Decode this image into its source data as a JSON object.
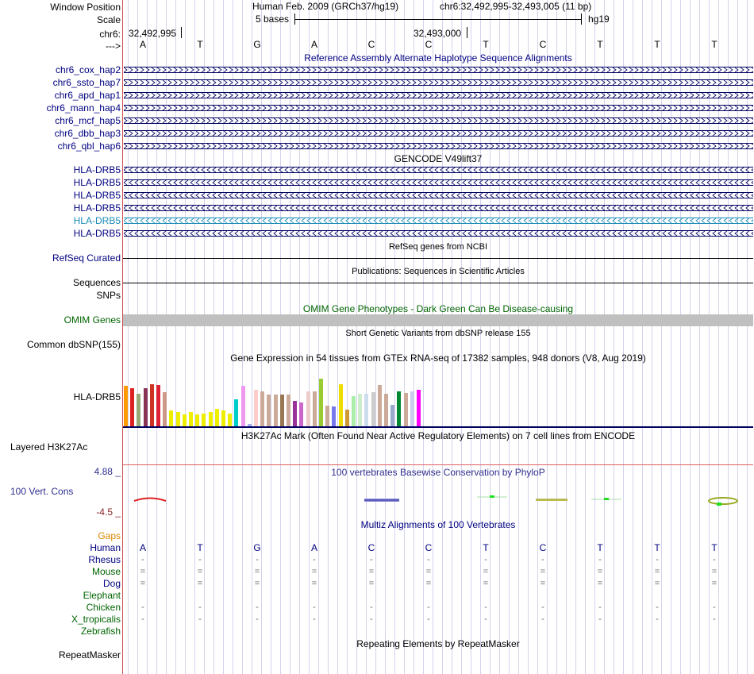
{
  "header": {
    "window_position_label": "Window Position",
    "scale_label": "Scale",
    "chr_label": "chr6:",
    "arrow_label": "--->",
    "assembly_title": "Human Feb. 2009 (GRCh37/hg19)",
    "position_range": "chr6:32,492,995-32,493,005 (11 bp)",
    "scale_text": "5 bases",
    "db_label": "hg19",
    "coord_left": "32,492,995",
    "coord_mid": "32,493,000"
  },
  "bases": [
    "A",
    "T",
    "G",
    "A",
    "C",
    "C",
    "T",
    "C",
    "T",
    "T",
    "T"
  ],
  "alt_haplotypes": {
    "title": "Reference Assembly Alternate Haplotype Sequence Alignments",
    "items": [
      "chr6_cox_hap2",
      "chr6_ssto_hap7",
      "chr6_apd_hap1",
      "chr6_mann_hap4",
      "chr6_mcf_hap5",
      "chr6_dbb_hap3",
      "chr6_qbl_hap6"
    ]
  },
  "gencode": {
    "title": "GENCODE V49lift37",
    "items": [
      "HLA-DRB5",
      "HLA-DRB5",
      "HLA-DRB5",
      "HLA-DRB5",
      "HLA-DRB5",
      "HLA-DRB5"
    ]
  },
  "refseq": {
    "title": "RefSeq genes from NCBI",
    "label": "RefSeq Curated"
  },
  "publications": {
    "title": "Publications: Sequences in Scientific Articles",
    "label": "Sequences"
  },
  "snps": {
    "label": "SNPs"
  },
  "omim": {
    "title": "OMIM Gene Phenotypes - Dark Green Can Be Disease-causing",
    "label": "OMIM Genes"
  },
  "dbsnp": {
    "title": "Short Genetic Variants from dbSNP release 155",
    "label": "Common dbSNP(155)"
  },
  "gtex": {
    "title": "Gene Expression in 54 tissues from GTEx RNA-seq of 17382 samples, 948 donors (V8, Aug 2019)",
    "label": "HLA-DRB5",
    "colors": [
      "#ff9900",
      "#dd2222",
      "#99aa77",
      "#883355",
      "#cc3322",
      "#dd2233",
      "#cc9988",
      "#eeee00",
      "#eeee00",
      "#eeee00",
      "#eeee00",
      "#eeee00",
      "#eeee00",
      "#eeee00",
      "#eeee00",
      "#eeee00",
      "#eeee00",
      "#00cccc",
      "#ee99ee",
      "#aaaaee",
      "#ffcccc",
      "#ccaa99",
      "#ccaa99",
      "#ccaa99",
      "#997755",
      "#ccaa99",
      "#993399",
      "#cc66cc",
      "#eecccc",
      "#ccaa99",
      "#99cc33",
      "#ccaa99",
      "#7777ee",
      "#eedd00",
      "#cc9933",
      "#aaeeaa",
      "#cceecc",
      "#ccddee",
      "#cccccc",
      "#ccaa99",
      "#ccaa99",
      "#99aacc",
      "#008833",
      "#ccaa99",
      "#ccccee",
      "#ff00ff"
    ],
    "values": [
      0.66,
      0.62,
      0.53,
      0.62,
      0.68,
      0.67,
      0.55,
      0.25,
      0.23,
      0.19,
      0.23,
      0.19,
      0.21,
      0.23,
      0.28,
      0.25,
      0.21,
      0.43,
      0.66,
      0.04,
      0.59,
      0.57,
      0.51,
      0.51,
      0.51,
      0.51,
      0.41,
      0.39,
      0.57,
      0.57,
      0.77,
      0.33,
      0.32,
      0.68,
      0.27,
      0.49,
      0.52,
      0.53,
      0.55,
      0.67,
      0.52,
      0.34,
      0.57,
      0.54,
      0.57,
      0.59
    ]
  },
  "h3k27ac": {
    "title": "H3K27Ac Mark (Often Found Near Active Regulatory Elements) on 7 cell lines from ENCODE",
    "label": "Layered H3K27Ac"
  },
  "phylop": {
    "title": "100 vertebrates Basewise Conservation by PhyloP",
    "label": "100 Vert. Cons",
    "ymax": "4.88 _",
    "ymin": "-4.5 _"
  },
  "multiz": {
    "title": "Multiz Alignments of 100 Vertebrates",
    "gaps_label": "Gaps",
    "species": [
      {
        "name": "Human",
        "glyph": "base"
      },
      {
        "name": "Rhesus",
        "glyph": "-"
      },
      {
        "name": "Mouse",
        "glyph": "="
      },
      {
        "name": "Dog",
        "glyph": "="
      },
      {
        "name": "Elephant",
        "glyph": ""
      },
      {
        "name": "Chicken",
        "glyph": "-"
      },
      {
        "name": "X_tropicalis",
        "glyph": "-"
      },
      {
        "name": "Zebrafish",
        "glyph": ""
      }
    ]
  },
  "repeatmasker": {
    "title": "Repeating Elements by RepeatMasker",
    "label": "RepeatMasker"
  },
  "colors": {
    "navy": "#000080",
    "dark_green": "#006400",
    "gaps_orange": "#dd8800",
    "omim_bar": "#c0c0c0",
    "phylop_blue": "#2f2f8f",
    "phylop_red": "#8b2323"
  }
}
